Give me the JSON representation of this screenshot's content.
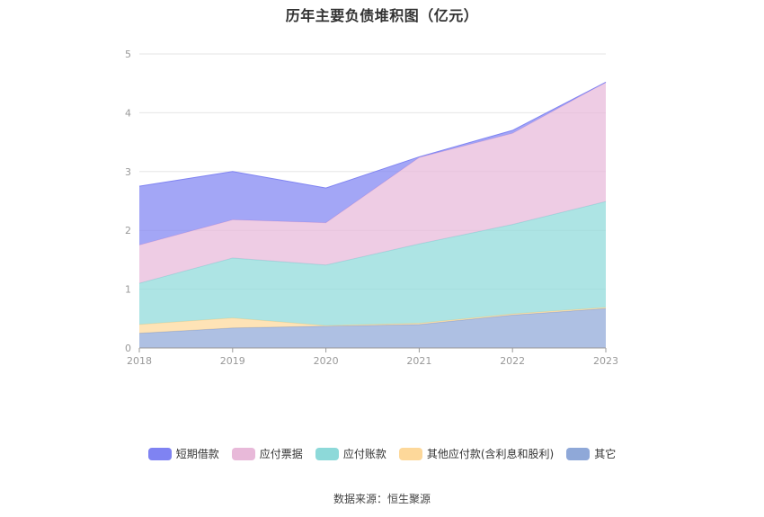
{
  "chart_data": {
    "type": "area",
    "stacked": true,
    "title": "历年主要负债堆积图（亿元）",
    "categories": [
      "2018",
      "2019",
      "2020",
      "2021",
      "2022",
      "2023"
    ],
    "y_ticks": [
      "0",
      "1",
      "2",
      "3",
      "4",
      "5"
    ],
    "ylim": [
      0,
      5
    ],
    "grid": true,
    "legend_position": "bottom",
    "series": [
      {
        "name": "其它",
        "color": "#8fa8d8",
        "values": [
          0.25,
          0.34,
          0.37,
          0.4,
          0.56,
          0.67
        ]
      },
      {
        "name": "其他应付款(含利息和股利)",
        "color": "#fdd89a",
        "values": [
          0.15,
          0.17,
          0.01,
          0.02,
          0.02,
          0.02
        ]
      },
      {
        "name": "应付账款",
        "color": "#8dd9d9",
        "values": [
          0.7,
          1.02,
          1.03,
          1.35,
          1.52,
          1.8
        ]
      },
      {
        "name": "应付票据",
        "color": "#e8b9d9",
        "values": [
          0.65,
          0.65,
          0.72,
          1.47,
          1.55,
          2.03
        ]
      },
      {
        "name": "短期借款",
        "color": "#7f83f2",
        "values": [
          1.0,
          0.82,
          0.59,
          0.01,
          0.05,
          0.0
        ]
      }
    ]
  },
  "legend": [
    {
      "name": "短期借款",
      "color": "#7f83f2"
    },
    {
      "name": "应付票据",
      "color": "#e8b9d9"
    },
    {
      "name": "应付账款",
      "color": "#8dd9d9"
    },
    {
      "name": "其他应付款(含利息和股利)",
      "color": "#fdd89a"
    },
    {
      "name": "其它",
      "color": "#8fa8d8"
    }
  ],
  "source": "数据来源：恒生聚源"
}
